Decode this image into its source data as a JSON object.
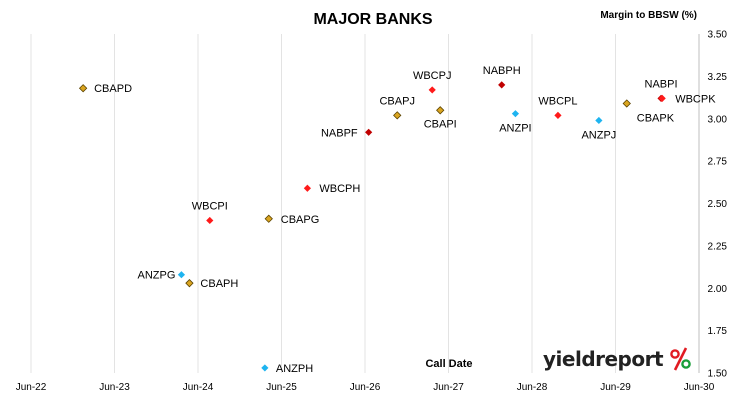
{
  "chart_data": {
    "type": "scatter",
    "title": "MAJOR BANKS",
    "ylabel": "Margin to BBSW (%)",
    "xlabel": "Call Date",
    "x_ticks": [
      "Jun-22",
      "Jun-23",
      "Jun-24",
      "Jun-25",
      "Jun-26",
      "Jun-27",
      "Jun-28",
      "Jun-29",
      "Jun-30"
    ],
    "xlim": [
      "2022-06",
      "2030-06"
    ],
    "ylim": [
      1.5,
      3.5
    ],
    "y_ticks": [
      "1.50",
      "1.75",
      "2.00",
      "2.25",
      "2.50",
      "2.75",
      "3.00",
      "3.25",
      "3.50"
    ],
    "y_axis_position": "right",
    "grid": "vertical",
    "colors": {
      "CBA": "#DAA520",
      "WBC": "#FF1A1A",
      "NAB": "#C00000",
      "ANZ": "#1EB4F0"
    },
    "points": [
      {
        "name": "CBAPD",
        "issuer": "CBA",
        "x": "2023-01-15",
        "y": 3.18
      },
      {
        "name": "ANZPG",
        "issuer": "ANZ",
        "x": "2024-03-20",
        "y": 2.08
      },
      {
        "name": "CBAPH",
        "issuer": "CBA",
        "x": "2024-04-24",
        "y": 2.03
      },
      {
        "name": "WBCPI",
        "issuer": "WBC",
        "x": "2024-07-22",
        "y": 2.4
      },
      {
        "name": "ANZPH",
        "issuer": "ANZ",
        "x": "2025-03-20",
        "y": 1.53
      },
      {
        "name": "CBAPG",
        "issuer": "CBA",
        "x": "2025-04-06",
        "y": 2.41
      },
      {
        "name": "WBCPH",
        "issuer": "WBC",
        "x": "2025-09-22",
        "y": 2.59
      },
      {
        "name": "NABPF",
        "issuer": "NAB",
        "x": "2026-06-17",
        "y": 2.92
      },
      {
        "name": "CBAPJ",
        "issuer": "CBA",
        "x": "2026-10-20",
        "y": 3.02
      },
      {
        "name": "WBCPJ",
        "issuer": "WBC",
        "x": "2027-03-22",
        "y": 3.17
      },
      {
        "name": "CBAPI",
        "issuer": "CBA",
        "x": "2027-04-26",
        "y": 3.05
      },
      {
        "name": "NABPH",
        "issuer": "NAB",
        "x": "2028-01-20",
        "y": 3.2
      },
      {
        "name": "ANZPI",
        "issuer": "ANZ",
        "x": "2028-03-20",
        "y": 3.03
      },
      {
        "name": "WBCPL",
        "issuer": "WBC",
        "x": "2028-09-22",
        "y": 3.02
      },
      {
        "name": "ANZPJ",
        "issuer": "ANZ",
        "x": "2029-03-20",
        "y": 2.99
      },
      {
        "name": "CBAPK",
        "issuer": "CBA",
        "x": "2029-07-20",
        "y": 3.09
      },
      {
        "name": "NABPI",
        "issuer": "NAB",
        "x": "2029-12-17",
        "y": 3.12
      },
      {
        "name": "WBCPK",
        "issuer": "WBC",
        "x": "2029-12-22",
        "y": 3.12
      }
    ]
  },
  "brand": {
    "word": "yieldreport",
    "symbol": "%",
    "symbol_top_color": "#E11B22",
    "symbol_bottom_color": "#1A9E3A"
  }
}
